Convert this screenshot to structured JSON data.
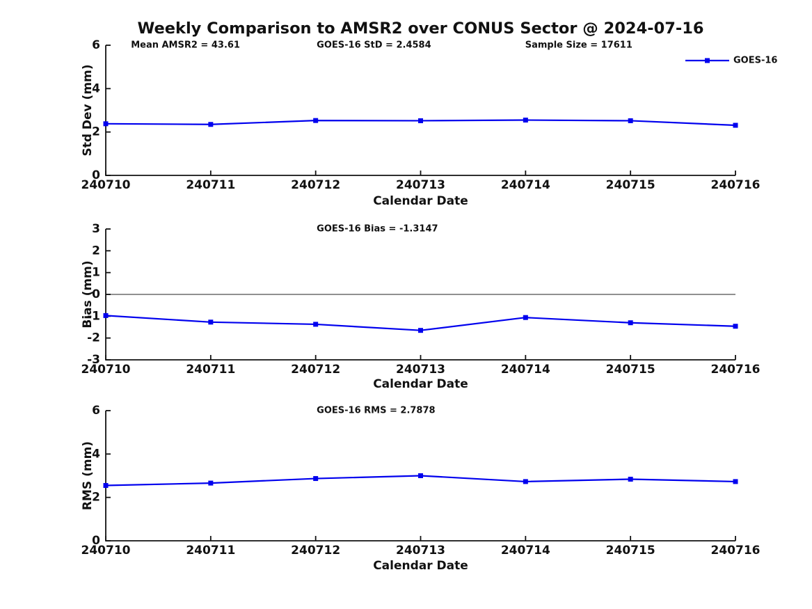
{
  "title": "Weekly Comparison to AMSR2 over CONUS Sector @ 2024-07-16",
  "colors": {
    "line": "#0000EE",
    "zero_line": "#808080",
    "text": "#111111",
    "background": "#FFFFFF"
  },
  "chart_data": [
    {
      "type": "line",
      "name": "std-dev",
      "annotations": [
        "Mean AMSR2 = 43.61",
        "GOES-16 StD = 2.4584",
        "Sample Size = 17611"
      ],
      "legend": {
        "label": "GOES-16",
        "position": "top-right"
      },
      "categories": [
        "240710",
        "240711",
        "240712",
        "240713",
        "240714",
        "240715",
        "240716"
      ],
      "series": [
        {
          "name": "GOES-16",
          "values": [
            2.38,
            2.35,
            2.53,
            2.52,
            2.55,
            2.52,
            2.31
          ]
        }
      ],
      "xlabel": "Calendar Date",
      "ylabel": "Std Dev (mm)",
      "ylim": [
        0,
        6
      ],
      "yticks": [
        0,
        2,
        4,
        6
      ],
      "grid": false
    },
    {
      "type": "line",
      "name": "bias",
      "annotations": [
        "GOES-16 Bias  = -1.3147"
      ],
      "categories": [
        "240710",
        "240711",
        "240712",
        "240713",
        "240714",
        "240715",
        "240716"
      ],
      "series": [
        {
          "name": "GOES-16",
          "values": [
            -0.97,
            -1.27,
            -1.37,
            -1.65,
            -1.06,
            -1.3,
            -1.46
          ]
        }
      ],
      "xlabel": "Calendar Date",
      "ylabel": "Bias (mm)",
      "ylim": [
        -3,
        3
      ],
      "yticks": [
        -3,
        -2,
        -1,
        0,
        1,
        2,
        3
      ],
      "zero_line": true,
      "grid": false
    },
    {
      "type": "line",
      "name": "rms",
      "annotations": [
        "GOES-16 RMS = 2.7878"
      ],
      "categories": [
        "240710",
        "240711",
        "240712",
        "240713",
        "240714",
        "240715",
        "240716"
      ],
      "series": [
        {
          "name": "GOES-16",
          "values": [
            2.55,
            2.66,
            2.87,
            3.0,
            2.73,
            2.84,
            2.73
          ]
        }
      ],
      "xlabel": "Calendar Date",
      "ylabel": "RMS (mm)",
      "ylim": [
        0,
        6
      ],
      "yticks": [
        0,
        2,
        4,
        6
      ],
      "grid": false
    }
  ]
}
